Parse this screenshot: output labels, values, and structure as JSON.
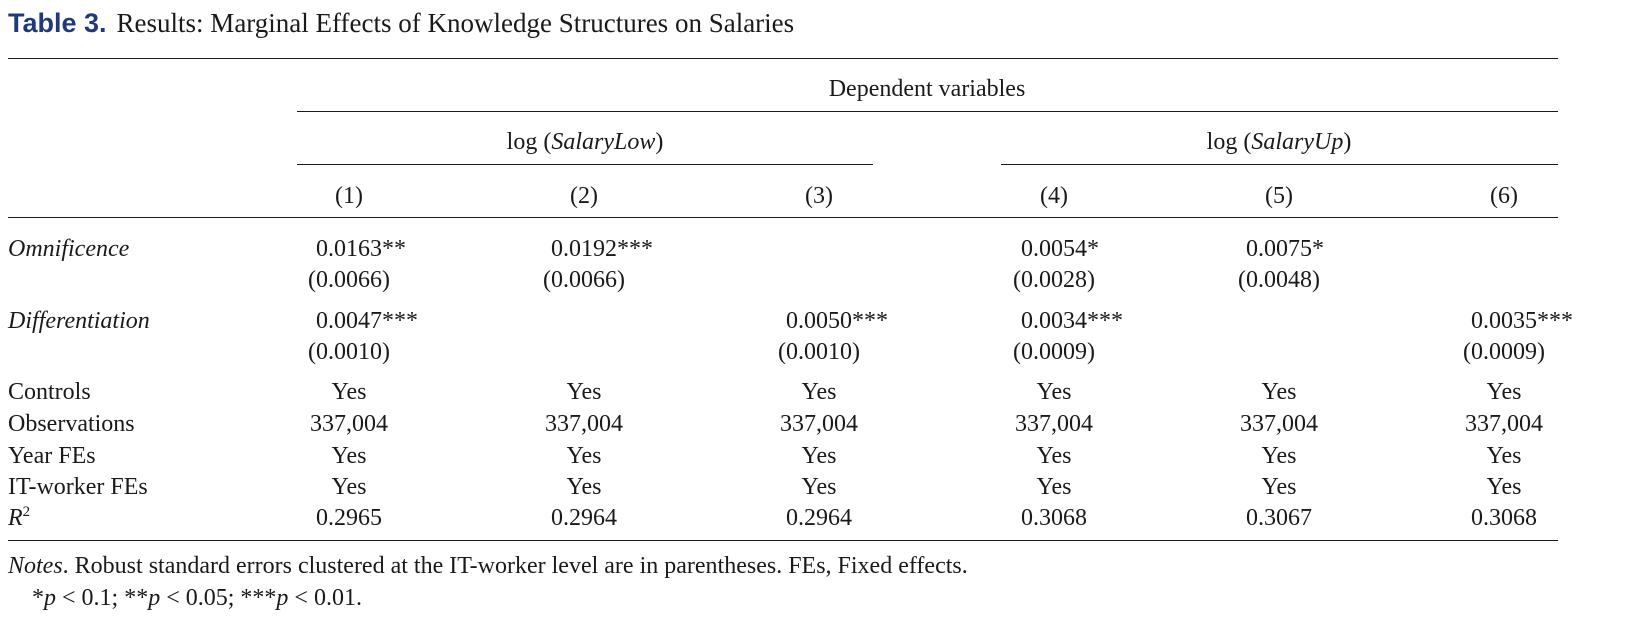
{
  "title": {
    "label": "Table 3.",
    "text": "Results: Marginal Effects of Knowledge Structures on Salaries"
  },
  "header": {
    "dependent_variables": "Dependent variables",
    "group_low": {
      "prefix": "log (",
      "var": "SalaryLow",
      "suffix": ")"
    },
    "group_up": {
      "prefix": "log (",
      "var": "SalaryUp",
      "suffix": ")"
    },
    "columns": [
      "(1)",
      "(2)",
      "(3)",
      "(4)",
      "(5)",
      "(6)"
    ]
  },
  "rows": {
    "omnificence": {
      "label": "Omnificence",
      "coef": [
        "0.0163**",
        "0.0192***",
        "",
        "0.0054*",
        "0.0075*",
        ""
      ],
      "se": [
        "(0.0066)",
        "(0.0066)",
        "",
        "(0.0028)",
        "(0.0048)",
        ""
      ]
    },
    "differentiation": {
      "label": "Differentiation",
      "coef": [
        "0.0047***",
        "",
        "0.0050***",
        "0.0034***",
        "",
        "0.0035***"
      ],
      "se": [
        "(0.0010)",
        "",
        "(0.0010)",
        "(0.0009)",
        "",
        "(0.0009)"
      ]
    },
    "controls": {
      "label": "Controls",
      "values": [
        "Yes",
        "Yes",
        "Yes",
        "Yes",
        "Yes",
        "Yes"
      ]
    },
    "observations": {
      "label": "Observations",
      "values": [
        "337,004",
        "337,004",
        "337,004",
        "337,004",
        "337,004",
        "337,004"
      ]
    },
    "year_fes": {
      "label": "Year FEs",
      "values": [
        "Yes",
        "Yes",
        "Yes",
        "Yes",
        "Yes",
        "Yes"
      ]
    },
    "it_worker_fes": {
      "label": "IT-worker FEs",
      "values": [
        "Yes",
        "Yes",
        "Yes",
        "Yes",
        "Yes",
        "Yes"
      ]
    },
    "r2": {
      "label": "R",
      "label_sup": "2",
      "values": [
        "0.2965",
        "0.2964",
        "0.2964",
        "0.3068",
        "0.3067",
        "0.3068"
      ]
    }
  },
  "notes": {
    "label": "Notes",
    "text": ". Robust standard errors clustered at the IT-worker level are in parentheses. FEs, Fixed effects.",
    "sig": [
      {
        "stars": "*",
        "p": "p",
        "rest": " < 0.1; "
      },
      {
        "stars": "**",
        "p": "p",
        "rest": " < 0.05; "
      },
      {
        "stars": "***",
        "p": "p",
        "rest": " < 0.01."
      }
    ]
  }
}
